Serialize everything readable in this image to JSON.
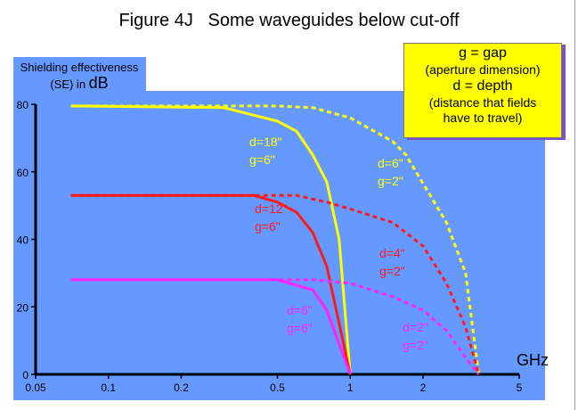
{
  "chart_data": {
    "type": "line",
    "title": "Figure 4J   Some waveguides below cut-off",
    "ylabel_line1": "Shielding effectiveness",
    "ylabel_line2_prefix": "(SE) in ",
    "ylabel_unit": "dB",
    "xlabel": "GHz",
    "xscale": "log",
    "xlim": [
      0.05,
      5
    ],
    "ylim": [
      0,
      80
    ],
    "xticks": [
      "0.05",
      "0.1",
      "0.2",
      "0.5",
      "1",
      "2",
      "5"
    ],
    "xtick_values": [
      0.05,
      0.1,
      0.2,
      0.5,
      1,
      2,
      5
    ],
    "yticks": [
      "0",
      "20",
      "40",
      "60",
      "80"
    ],
    "ytick_values": [
      0,
      20,
      40,
      60,
      80
    ],
    "legend_box": {
      "lines": [
        "g  = gap",
        "(aperture dimension)",
        "d = depth",
        "(distance that fields",
        "have to travel)"
      ],
      "placement": "top-right"
    },
    "series": [
      {
        "name": "d=18\" g=6\"",
        "label1": "d=18\"",
        "label2": "g=6\"",
        "color": "#ffff00",
        "style": "solid",
        "x": [
          0.07,
          0.3,
          0.5,
          0.6,
          0.7,
          0.8,
          0.9,
          1.0
        ],
        "y": [
          79.5,
          79,
          75,
          72,
          65,
          57,
          40,
          0
        ]
      },
      {
        "name": "d=6\" g=2\"",
        "label1": "d=6\"",
        "label2": "g=2\"",
        "color": "#ffff00",
        "style": "dashed",
        "x": [
          0.07,
          0.5,
          0.7,
          1.0,
          1.5,
          1.7,
          2.5,
          3.0,
          3.4
        ],
        "y": [
          79.5,
          79.5,
          79,
          76,
          69,
          65,
          45,
          30,
          0
        ]
      },
      {
        "name": "d=12\" g=6\"",
        "label1": "d=12\"",
        "label2": "g=6\"",
        "color": "#ff1a1a",
        "style": "solid",
        "x": [
          0.07,
          0.4,
          0.5,
          0.6,
          0.7,
          0.8,
          1.0
        ],
        "y": [
          53,
          53,
          51,
          48,
          42,
          32,
          0
        ]
      },
      {
        "name": "d=4\" g=2\"",
        "label1": "d=4\"",
        "label2": "g=2\"",
        "color": "#ff1a1a",
        "style": "dashed",
        "x": [
          0.07,
          0.6,
          0.8,
          1.0,
          1.5,
          2.0,
          2.5,
          3.0,
          3.4
        ],
        "y": [
          53,
          53,
          51,
          49,
          45,
          38,
          27,
          14,
          0
        ]
      },
      {
        "name": "d=6\" g=6\"",
        "label1": "d=6\"",
        "label2": "g=6\"",
        "color": "#ff22ff",
        "style": "solid",
        "x": [
          0.07,
          0.5,
          0.7,
          0.8,
          1.0
        ],
        "y": [
          28,
          28,
          25,
          19,
          0
        ]
      },
      {
        "name": "d=2\" g=2\"",
        "label1": "d=2\"",
        "label2": "g=2\"",
        "color": "#ff22ff",
        "style": "dashed",
        "x": [
          0.07,
          0.7,
          1.0,
          1.5,
          2.0,
          2.5,
          3.0,
          3.4
        ],
        "y": [
          28,
          28,
          27,
          23,
          19,
          13,
          5,
          0
        ]
      }
    ],
    "colors": {
      "background": "#6699ff",
      "axis": "#000000"
    }
  }
}
